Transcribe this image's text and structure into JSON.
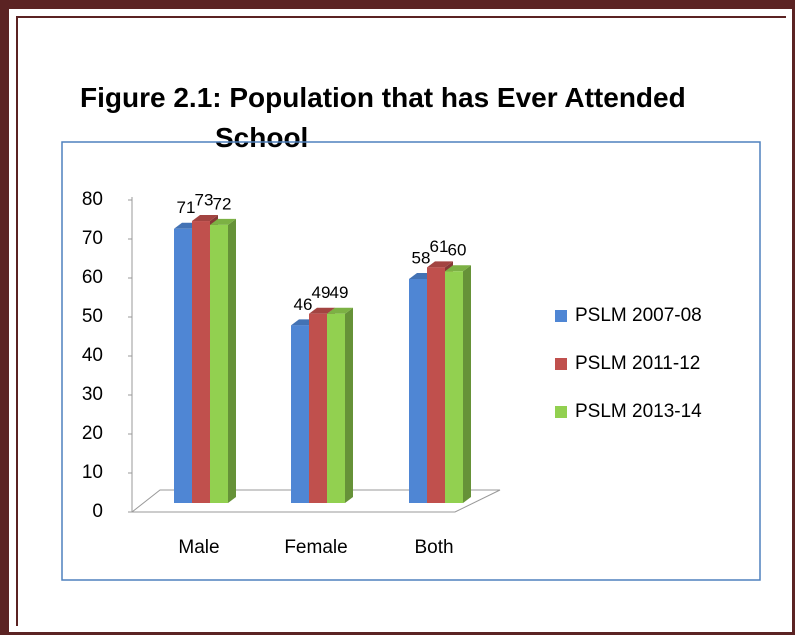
{
  "chart_data": {
    "type": "bar3d",
    "title": "Figure 2.1: Population that has Ever Attended School",
    "categories": [
      "Male",
      "Female",
      "Both"
    ],
    "series": [
      {
        "name": "PSLM 2007-08",
        "color": "#4f86d4",
        "values": [
          71,
          46,
          58
        ]
      },
      {
        "name": "PSLM 2011-12",
        "color": "#c0504d",
        "values": [
          73,
          49,
          61
        ]
      },
      {
        "name": "PSLM 2013-14",
        "color": "#92d050",
        "values": [
          72,
          49,
          60
        ]
      }
    ],
    "ylim": [
      0,
      80
    ],
    "yticks": [
      0,
      10,
      20,
      30,
      40,
      50,
      60,
      70,
      80
    ],
    "legend": "right"
  }
}
